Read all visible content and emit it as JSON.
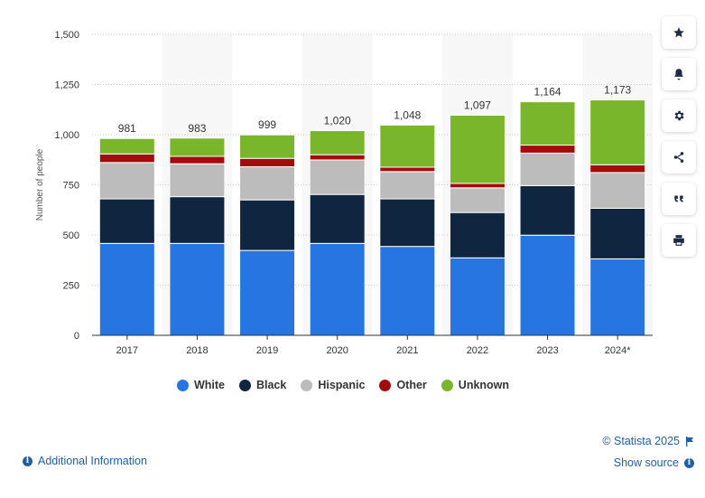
{
  "chart_data": {
    "type": "bar",
    "stacked": true,
    "categories": [
      "2017",
      "2018",
      "2019",
      "2020",
      "2021",
      "2022",
      "2023",
      "2024*"
    ],
    "series": [
      {
        "name": "White",
        "color": "#2775e0",
        "values": [
          458,
          458,
          423,
          458,
          443,
          386,
          499,
          381
        ]
      },
      {
        "name": "Black",
        "color": "#0f2540",
        "values": [
          222,
          233,
          252,
          244,
          237,
          226,
          247,
          252
        ]
      },
      {
        "name": "Hispanic",
        "color": "#bcbcbc",
        "values": [
          181,
          164,
          165,
          172,
          136,
          123,
          162,
          178
        ]
      },
      {
        "name": "Other",
        "color": "#a30c0c",
        "values": [
          43,
          37,
          42,
          26,
          22,
          22,
          40,
          39
        ]
      },
      {
        "name": "Unknown",
        "color": "#7ab62b",
        "values": [
          77,
          91,
          117,
          120,
          210,
          340,
          216,
          323
        ]
      }
    ],
    "totals": [
      "981",
      "983",
      "999",
      "1,020",
      "1,048",
      "1,097",
      "1,164",
      "1,173"
    ],
    "ylabel": "Number of people",
    "xlabel": "",
    "ylim": [
      0,
      1500
    ],
    "yticks": [
      0,
      250,
      500,
      750,
      1000,
      1250,
      1500
    ],
    "ytick_labels": [
      "0",
      "250",
      "500",
      "750",
      "1,000",
      "1,250",
      "1,500"
    ],
    "grid": true,
    "legend_position": "bottom"
  },
  "toolbar": {
    "buttons": [
      {
        "name": "favorite-button",
        "icon": "star-icon"
      },
      {
        "name": "notification-button",
        "icon": "bell-icon"
      },
      {
        "name": "settings-button",
        "icon": "gear-icon"
      },
      {
        "name": "share-button",
        "icon": "share-icon"
      },
      {
        "name": "cite-button",
        "icon": "quote-icon"
      },
      {
        "name": "print-button",
        "icon": "print-icon"
      }
    ]
  },
  "footer": {
    "additional_info": "Additional Information",
    "copyright": "© Statista 2025",
    "show_source": "Show source"
  }
}
